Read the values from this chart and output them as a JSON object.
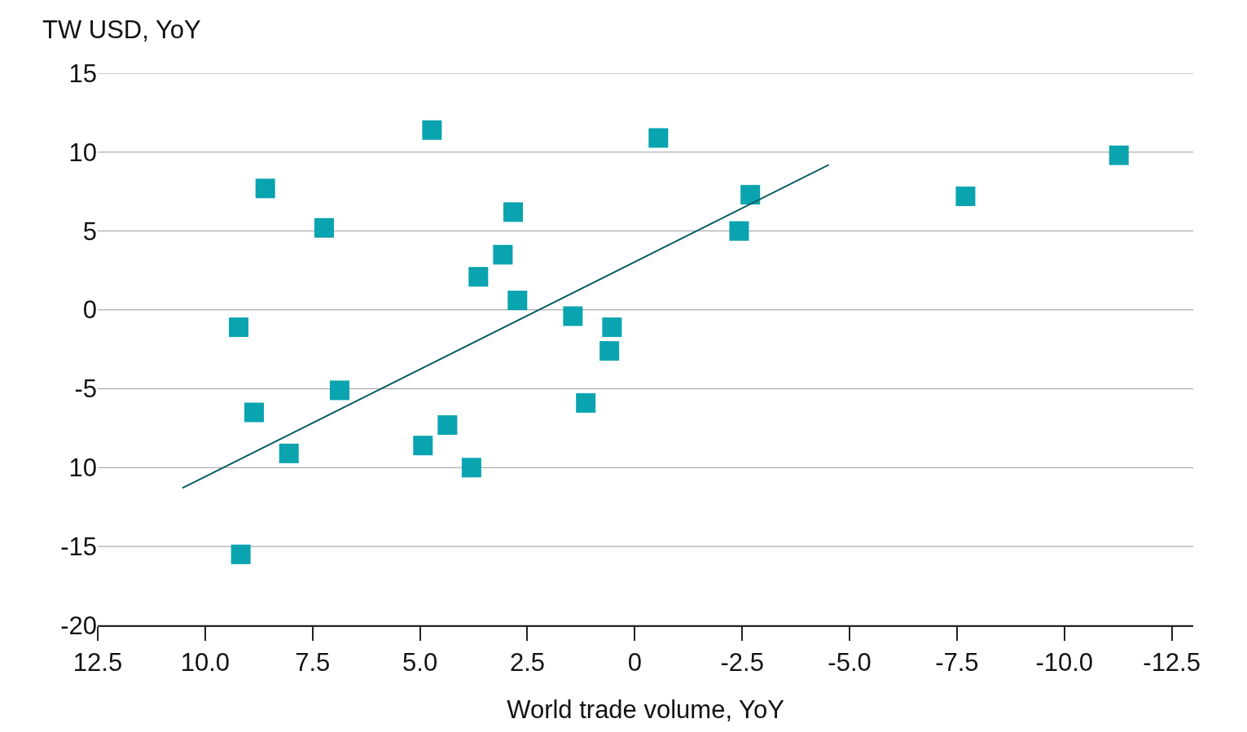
{
  "chart_data": {
    "type": "scatter",
    "xlabel": "World trade volume, YoY",
    "ylabel": "TW USD, YoY",
    "marker": "square",
    "grid": "y",
    "xlim": [
      12.5,
      -13.0
    ],
    "xticks": [
      12.5,
      {
        "value": 10,
        "label": "10.0"
      },
      7.5,
      {
        "value": 5,
        "label": "5.0"
      },
      2.5,
      0,
      -2.5,
      {
        "value": -5,
        "label": "-5.0"
      },
      -7.5,
      {
        "value": -10,
        "label": "-10.0"
      },
      -12.5
    ],
    "ylim": [
      -20,
      15
    ],
    "yticks": [
      15,
      10,
      5,
      0,
      -5,
      {
        "value": -10,
        "label": "10"
      },
      -15,
      -20
    ],
    "series": [
      {
        "color": "#0aa3b0",
        "x": [
          4.72,
          -0.55,
          -11.27,
          8.6,
          -2.69,
          -7.7,
          7.23,
          -2.43,
          2.83,
          3.07,
          3.64,
          2.73,
          9.22,
          1.44,
          0.53,
          0.59,
          6.87,
          8.86,
          1.14,
          4.36,
          4.93,
          8.05,
          3.8,
          9.17
        ],
        "values": [
          11.4,
          10.9,
          9.8,
          7.7,
          7.3,
          7.2,
          5.2,
          5.0,
          6.2,
          3.5,
          2.1,
          0.6,
          -1.1,
          -0.4,
          -1.1,
          -2.6,
          -5.1,
          -6.5,
          -5.9,
          -7.3,
          -8.6,
          -9.1,
          -10.0,
          -15.5
        ]
      },
      {
        "type": "line",
        "marker": "none",
        "color": "#0d5b66",
        "x": [
          10.53,
          -4.52
        ],
        "values": [
          -11.3,
          9.2
        ]
      }
    ]
  }
}
